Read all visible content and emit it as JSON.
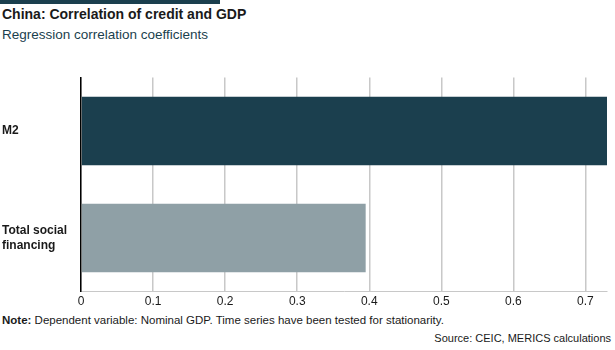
{
  "chart_data": {
    "type": "bar",
    "orientation": "horizontal",
    "title": "China: Correlation of credit and GDP",
    "subtitle": "Regression correlation coefficients",
    "categories": [
      "M2",
      "Total social financing"
    ],
    "values": [
      0.73,
      0.395
    ],
    "colors": [
      "#1b3f4e",
      "#8fa0a6"
    ],
    "xlim": [
      0,
      0.73
    ],
    "xticks": [
      0,
      0.1,
      0.2,
      0.3,
      0.4,
      0.5,
      0.6,
      0.7
    ],
    "grid": true,
    "note": "Note: Dependent variable: Nominal GDP. Time series have been tested for stationarity.",
    "source": "Source: CEIC, MERICS calculations"
  }
}
